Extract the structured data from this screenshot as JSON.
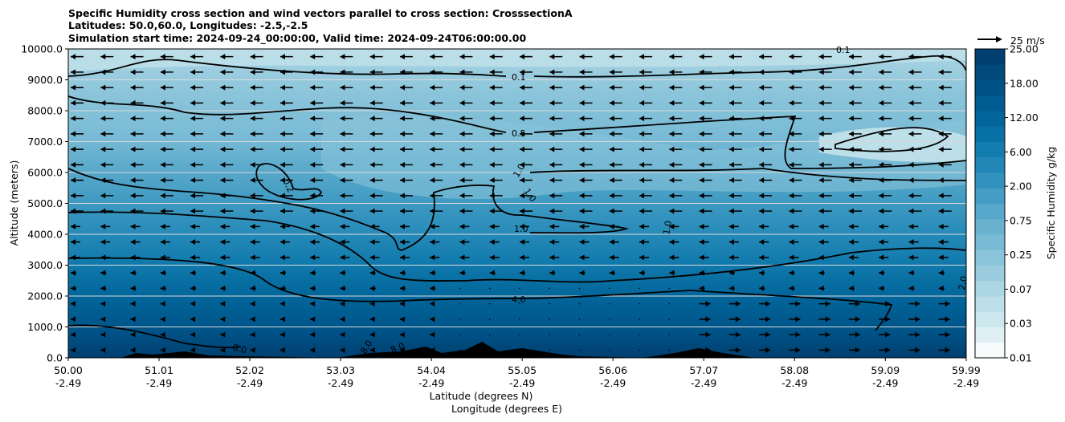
{
  "chart_data": {
    "type": "heatmap",
    "title_lines": [
      "Specific Humidity cross section and wind vectors parallel to cross section: CrosssectionA",
      "Latitudes: 50.0,60.0, Longitudes: -2.5,-2.5",
      "Simulation start time: 2024-09-24_00:00:00, Valid time: 2024-09-24T06:00:00.00"
    ],
    "ylabel": "Altitude (meters)",
    "xlabel_lat": "Latitude (degrees N)",
    "xlabel_lon": "Longitude (degrees E)",
    "y_ticks": [
      "0.0",
      "1000.0",
      "2000.0",
      "3000.0",
      "4000.0",
      "5000.0",
      "6000.0",
      "7000.0",
      "8000.0",
      "9000.0",
      "10000.0"
    ],
    "y_tick_values": [
      0,
      1000,
      2000,
      3000,
      4000,
      5000,
      6000,
      7000,
      8000,
      9000,
      10000
    ],
    "ylim": [
      0,
      10000
    ],
    "x_ticks_lat": [
      "50.00",
      "51.01",
      "52.02",
      "53.03",
      "54.04",
      "55.05",
      "56.06",
      "57.07",
      "58.08",
      "59.09",
      "59.99"
    ],
    "x_ticks_lon": [
      "-2.49",
      "-2.49",
      "-2.49",
      "-2.49",
      "-2.49",
      "-2.49",
      "-2.49",
      "-2.49",
      "-2.49",
      "-2.49",
      "-2.49"
    ],
    "x_tick_values": [
      50.0,
      51.01,
      52.02,
      53.03,
      54.04,
      55.05,
      56.06,
      57.07,
      58.08,
      59.09,
      59.99
    ],
    "xlim": [
      50.0,
      59.99
    ],
    "colorbar": {
      "label": "Specific Humidity g/kg",
      "ticks": [
        "0.01",
        "0.03",
        "0.07",
        "0.25",
        "0.75",
        "2.00",
        "6.00",
        "12.00",
        "18.00",
        "25.00"
      ],
      "levels": 20,
      "colors": [
        "#f7fbfc",
        "#e0eff3",
        "#cde7ee",
        "#bcdfe9",
        "#acd6e4",
        "#9bcddf",
        "#8ac4da",
        "#79bbd5",
        "#68b2cf",
        "#57a8ca",
        "#449dc4",
        "#3292bd",
        "#2287b6",
        "#137cae",
        "#0871a5",
        "#02669b",
        "#005c91",
        "#005286",
        "#004a7c",
        "#003f6f"
      ]
    },
    "vector_key": {
      "label": "25 m/s",
      "value": 25
    },
    "contour_labels": [
      "0.1",
      "0.1",
      "0.5",
      "0.2",
      "1.0",
      "1.0",
      "1.0",
      "1.0",
      "4.0",
      "8.0",
      "8.0",
      "8.0",
      "2.0"
    ],
    "wind_direction": "southward aloft, northward near surface in north",
    "grid": "horizontal"
  }
}
